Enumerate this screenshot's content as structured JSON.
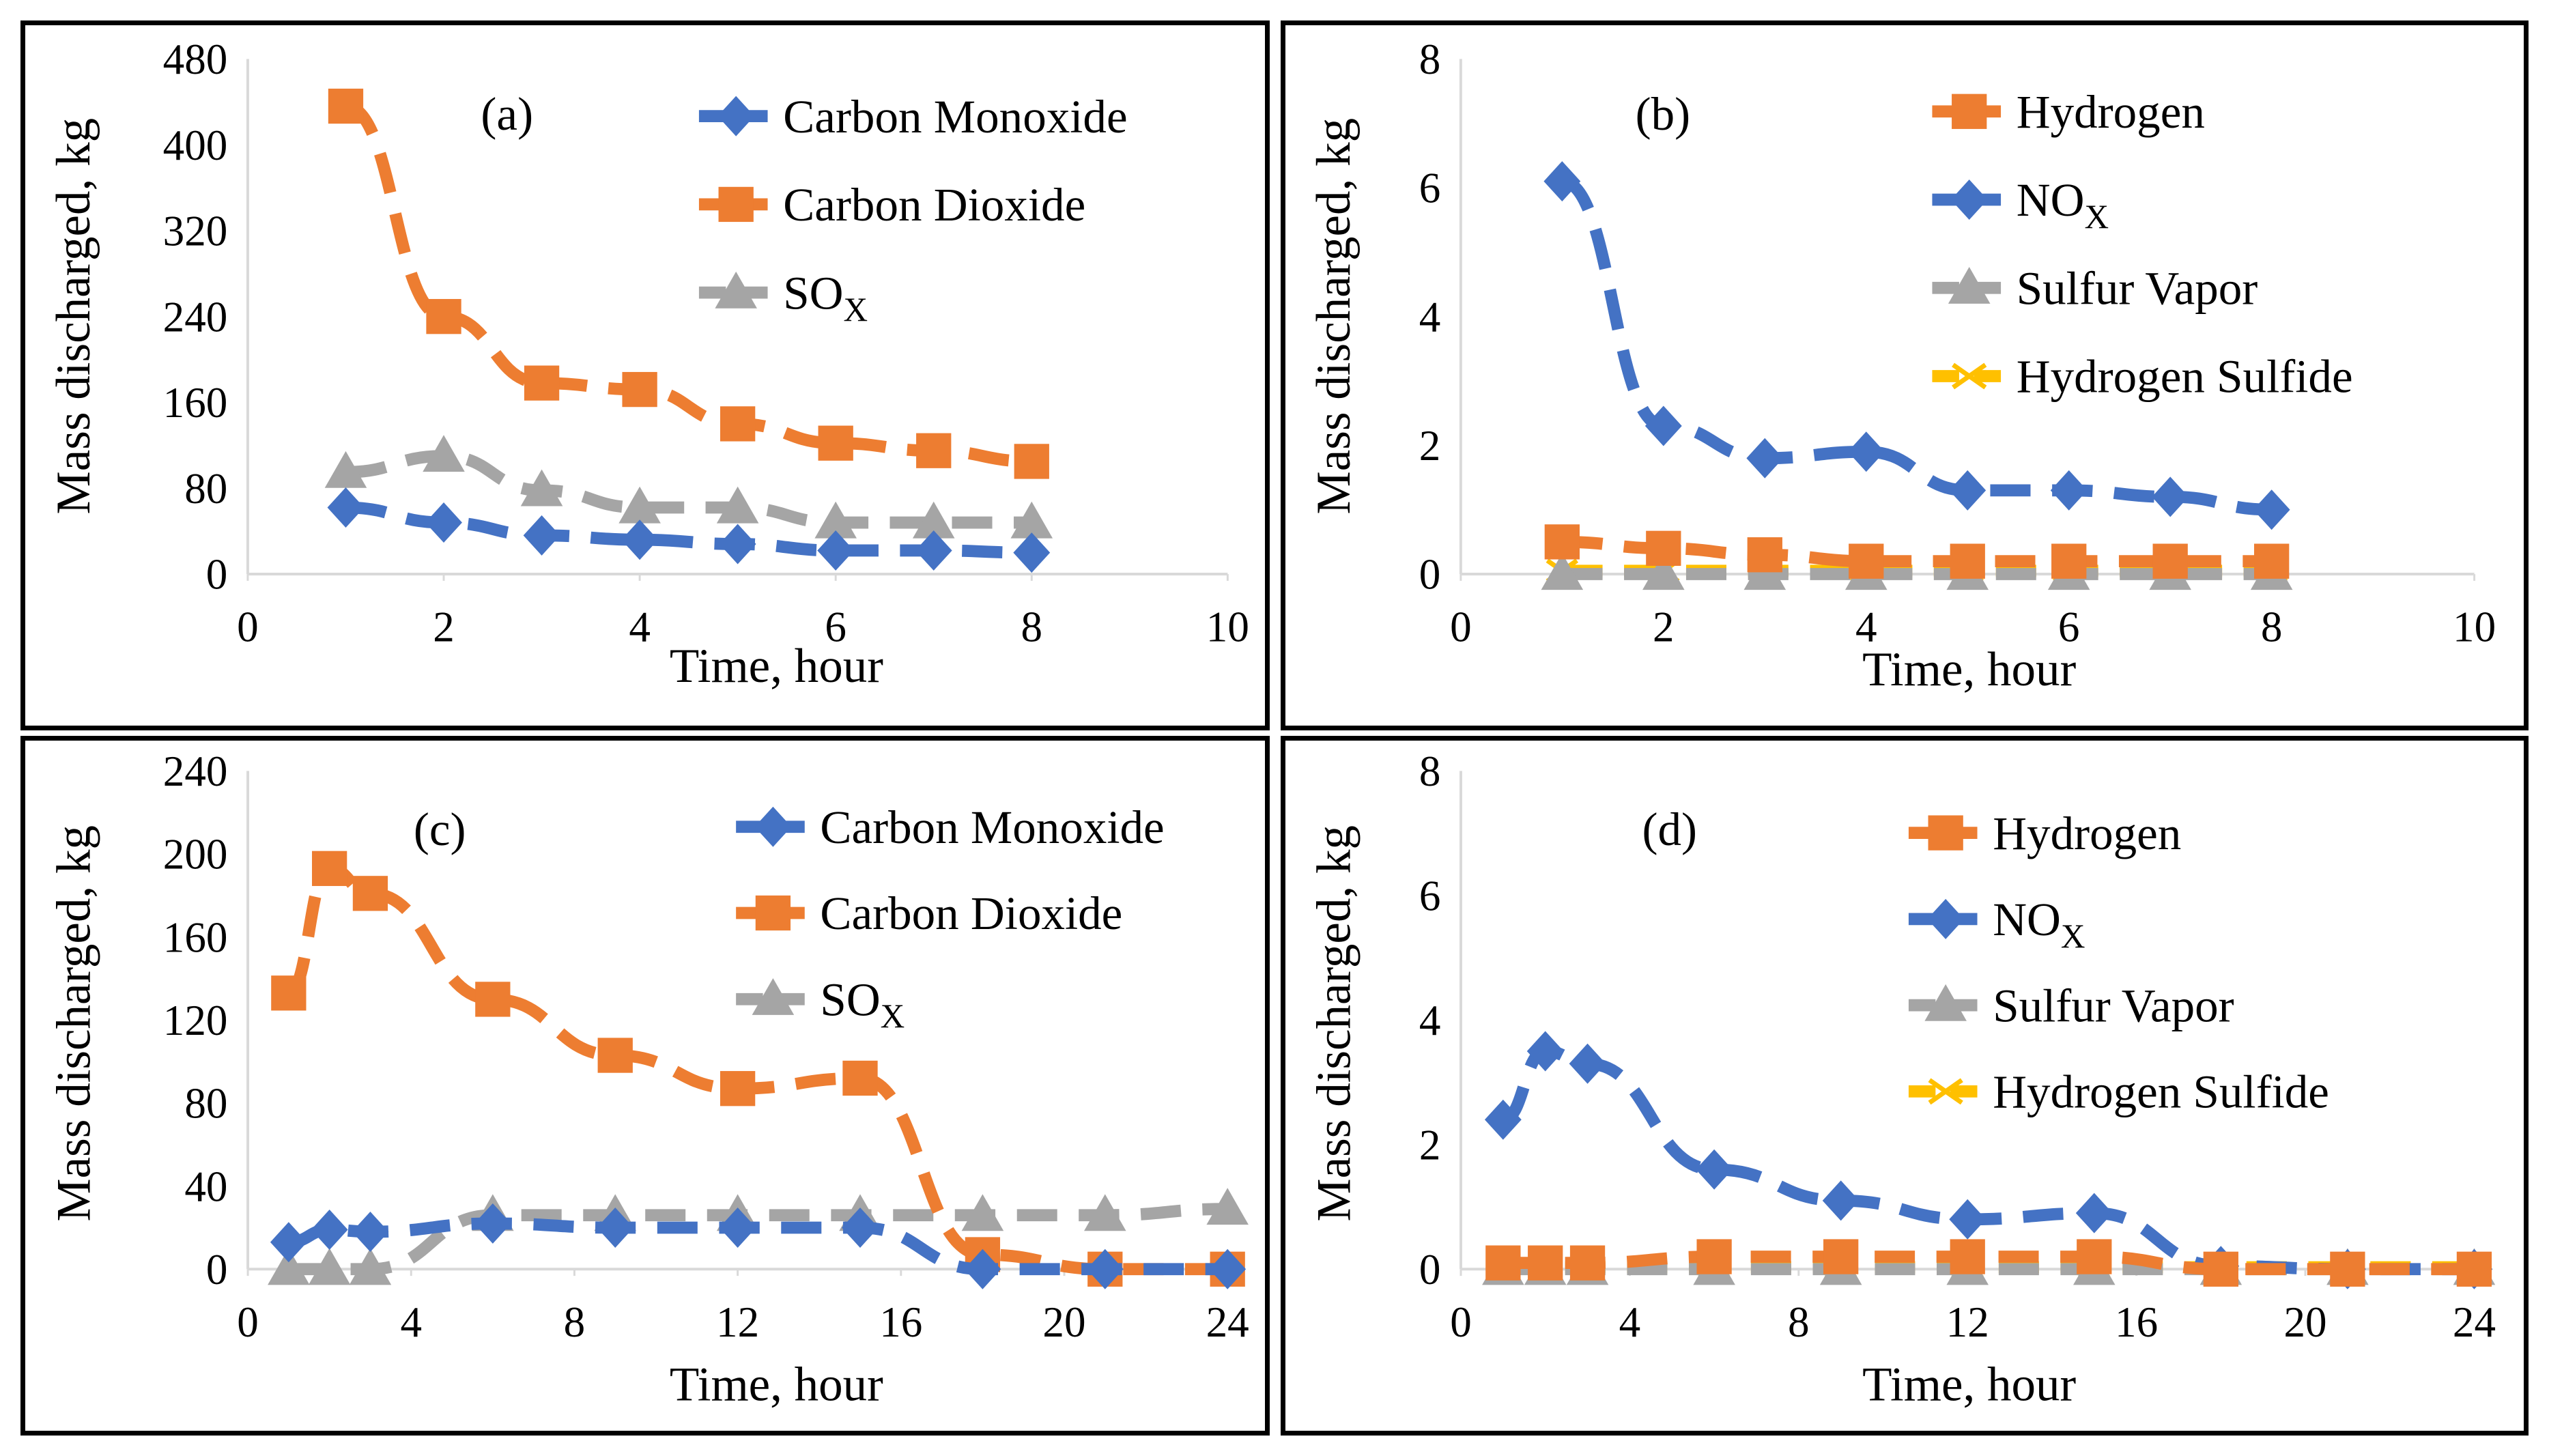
{
  "figure": {
    "panel_ids": [
      "a",
      "b",
      "c",
      "d"
    ]
  },
  "chart_data": [
    {
      "id": "a",
      "tag": "(a)",
      "type": "line",
      "xlabel": "Time, hour",
      "ylabel": "Mass discharged, kg",
      "xlim": [
        0,
        10
      ],
      "ylim": [
        0,
        480
      ],
      "xticks": [
        0,
        2,
        4,
        6,
        8,
        10
      ],
      "yticks": [
        0,
        80,
        160,
        240,
        320,
        400,
        480
      ],
      "legend_position": "top-right",
      "series": [
        {
          "name": "Carbon Monoxide",
          "marker": "diamond",
          "color": "#4472c4",
          "x": [
            1,
            2,
            3,
            4,
            5,
            6,
            7,
            8
          ],
          "y": [
            62,
            48,
            36,
            32,
            28,
            22,
            22,
            20
          ]
        },
        {
          "name": "Carbon Dioxide",
          "marker": "square",
          "color": "#ed7d31",
          "x": [
            1,
            2,
            3,
            4,
            5,
            6,
            7,
            8
          ],
          "y": [
            436,
            240,
            178,
            172,
            140,
            122,
            115,
            105
          ]
        },
        {
          "name": "SO",
          "sub": "X",
          "marker": "triangle",
          "color": "#a5a5a5",
          "x": [
            1,
            2,
            3,
            4,
            5,
            6,
            7,
            8
          ],
          "y": [
            95,
            110,
            78,
            62,
            62,
            48,
            48,
            48
          ]
        }
      ]
    },
    {
      "id": "b",
      "tag": "(b)",
      "type": "line",
      "xlabel": "Time, hour",
      "ylabel": "Mass discharged, kg",
      "xlim": [
        0,
        10
      ],
      "ylim": [
        0,
        8
      ],
      "xticks": [
        0,
        2,
        4,
        6,
        8,
        10
      ],
      "yticks": [
        0,
        2,
        4,
        6,
        8
      ],
      "legend_position": "top-right",
      "series": [
        {
          "name": "Hydrogen",
          "marker": "square",
          "color": "#ed7d31",
          "x": [
            1,
            2,
            3,
            4,
            5,
            6,
            7,
            8
          ],
          "y": [
            0.5,
            0.4,
            0.3,
            0.2,
            0.2,
            0.2,
            0.2,
            0.2
          ]
        },
        {
          "name": "NO",
          "sub": "X",
          "marker": "diamond",
          "color": "#4472c4",
          "x": [
            1,
            2,
            3,
            4,
            5,
            6,
            7,
            8
          ],
          "y": [
            6.1,
            2.3,
            1.8,
            1.9,
            1.3,
            1.3,
            1.2,
            1.0
          ]
        },
        {
          "name": "Sulfur Vapor",
          "marker": "triangle",
          "color": "#a5a5a5",
          "x": [
            1,
            2,
            3,
            4,
            5,
            6,
            7,
            8
          ],
          "y": [
            0,
            0,
            0,
            0,
            0,
            0,
            0,
            0
          ]
        },
        {
          "name": "Hydrogen Sulfide",
          "marker": "x",
          "color": "#ffc000",
          "x": [
            1,
            2,
            3,
            4,
            5,
            6,
            7,
            8
          ],
          "y": [
            0.05,
            0.05,
            0.05,
            0.05,
            0.05,
            0.05,
            0.05,
            0.05
          ]
        }
      ]
    },
    {
      "id": "c",
      "tag": "(c)",
      "type": "line",
      "xlabel": "Time, hour",
      "ylabel": "Mass discharged, kg",
      "xlim": [
        0,
        24
      ],
      "ylim": [
        0,
        240
      ],
      "xticks": [
        0,
        4,
        8,
        12,
        16,
        20,
        24
      ],
      "yticks": [
        0,
        40,
        80,
        120,
        160,
        200,
        240
      ],
      "legend_position": "top-right",
      "series": [
        {
          "name": "Carbon Monoxide",
          "marker": "diamond",
          "color": "#4472c4",
          "x": [
            1,
            2,
            3,
            6,
            9,
            12,
            15,
            18,
            21,
            24
          ],
          "y": [
            13,
            19,
            18,
            22,
            20,
            20,
            20,
            0,
            0,
            0
          ]
        },
        {
          "name": "Carbon Dioxide",
          "marker": "square",
          "color": "#ed7d31",
          "x": [
            1,
            2,
            3,
            6,
            9,
            12,
            15,
            18,
            21,
            24
          ],
          "y": [
            133,
            193,
            181,
            130,
            103,
            87,
            92,
            7,
            0,
            0
          ]
        },
        {
          "name": "SO",
          "sub": "X",
          "marker": "triangle",
          "color": "#a5a5a5",
          "x": [
            1,
            2,
            3,
            6,
            9,
            12,
            15,
            18,
            21,
            24
          ],
          "y": [
            0,
            0,
            0,
            26,
            26,
            26,
            26,
            26,
            26,
            29
          ]
        }
      ]
    },
    {
      "id": "d",
      "tag": "(d)",
      "type": "line",
      "xlabel": "Time, hour",
      "ylabel": "Mass discharged, kg",
      "xlim": [
        0,
        24
      ],
      "ylim": [
        0,
        8
      ],
      "xticks": [
        0,
        4,
        8,
        12,
        16,
        20,
        24
      ],
      "yticks": [
        0,
        2,
        4,
        6,
        8
      ],
      "legend_position": "top-right",
      "series": [
        {
          "name": "Hydrogen",
          "marker": "square",
          "color": "#ed7d31",
          "x": [
            1,
            2,
            3,
            6,
            9,
            12,
            15,
            18,
            21,
            24
          ],
          "y": [
            0.1,
            0.1,
            0.1,
            0.2,
            0.2,
            0.2,
            0.2,
            0,
            0,
            0
          ]
        },
        {
          "name": "NO",
          "sub": "X",
          "marker": "diamond",
          "color": "#4472c4",
          "x": [
            1,
            2,
            3,
            6,
            9,
            12,
            15,
            18,
            21,
            24
          ],
          "y": [
            2.4,
            3.5,
            3.3,
            1.6,
            1.1,
            0.8,
            0.9,
            0.05,
            0,
            0
          ]
        },
        {
          "name": "Sulfur Vapor",
          "marker": "triangle",
          "color": "#a5a5a5",
          "x": [
            1,
            2,
            3,
            6,
            9,
            12,
            15,
            18,
            21,
            24
          ],
          "y": [
            0,
            0,
            0,
            0,
            0,
            0,
            0,
            0,
            0,
            0
          ]
        },
        {
          "name": "Hydrogen Sulfide",
          "marker": "x",
          "color": "#ffc000",
          "x": [
            1,
            2,
            3,
            6,
            9,
            12,
            15,
            18,
            21,
            24
          ],
          "y": [
            0.03,
            0.03,
            0.03,
            0.03,
            0.03,
            0.03,
            0.03,
            0.03,
            0.03,
            0.03
          ]
        }
      ]
    }
  ]
}
